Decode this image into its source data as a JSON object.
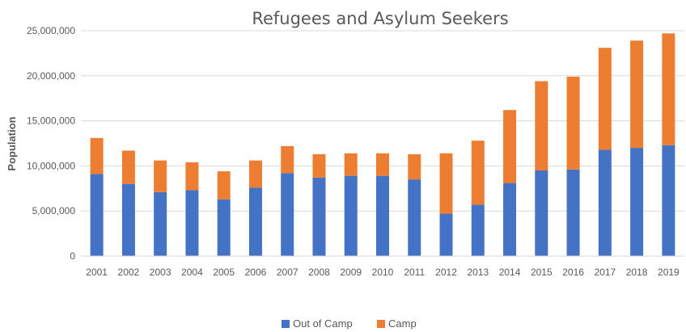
{
  "chart_data": {
    "type": "bar",
    "stacked": true,
    "title": "Refugees and Asylum Seekers",
    "xlabel": "",
    "ylabel": "Population",
    "ylim": [
      0,
      25000000
    ],
    "yticks": [
      "0",
      "5,000,000",
      "10,000,000",
      "15,000,000",
      "20,000,000",
      "25,000,000"
    ],
    "ytick_values": [
      0,
      5000000,
      10000000,
      15000000,
      20000000,
      25000000
    ],
    "grid": true,
    "legend_position": "bottom",
    "categories": [
      "2001",
      "2002",
      "2003",
      "2004",
      "2005",
      "2006",
      "2007",
      "2008",
      "2009",
      "2010",
      "2011",
      "2012",
      "2013",
      "2014",
      "2015",
      "2016",
      "2017",
      "2018",
      "2019"
    ],
    "series": [
      {
        "name": "Out of Camp",
        "color": "#4472C4",
        "values": [
          9100000,
          8000000,
          7100000,
          7300000,
          6300000,
          7600000,
          9200000,
          8700000,
          8900000,
          8900000,
          8500000,
          4700000,
          5700000,
          8100000,
          9500000,
          9600000,
          11800000,
          12000000,
          12300000
        ]
      },
      {
        "name": "Camp",
        "color": "#ED7D31",
        "values": [
          4000000,
          3700000,
          3500000,
          3100000,
          3100000,
          3000000,
          3000000,
          2600000,
          2500000,
          2500000,
          2800000,
          6700000,
          7100000,
          8100000,
          9900000,
          10300000,
          11300000,
          11900000,
          12400000
        ]
      }
    ]
  }
}
